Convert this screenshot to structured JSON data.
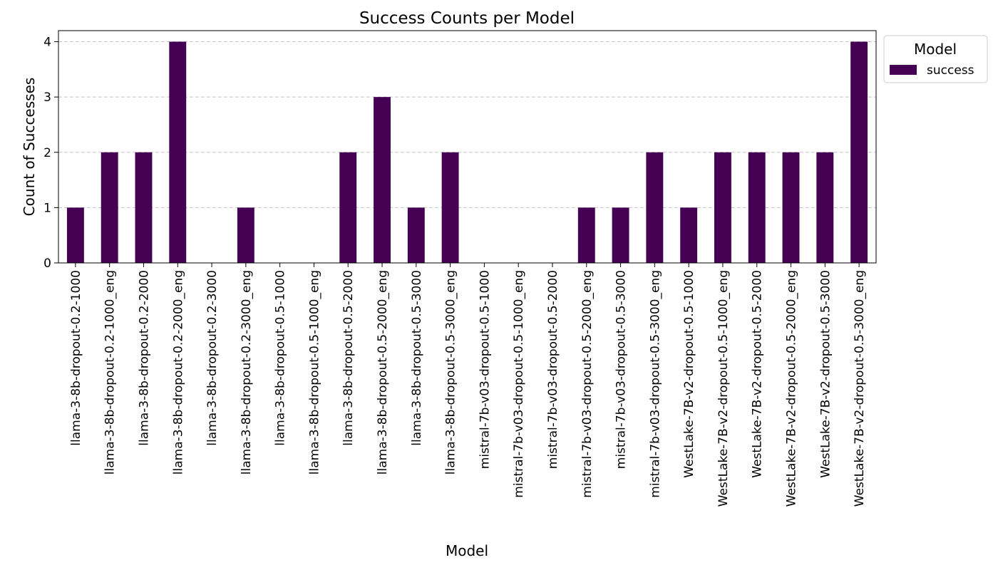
{
  "chart_data": {
    "type": "bar",
    "title": "Success Counts per Model",
    "xlabel": "Model",
    "ylabel": "Count of Successes",
    "ylim": [
      0,
      4.2
    ],
    "yticks": [
      0,
      1,
      2,
      3,
      4
    ],
    "grid": "y",
    "legend": {
      "title": "Model",
      "placement": "outside-top-right"
    },
    "categories": [
      "llama-3-8b-dropout-0.2-1000",
      "llama-3-8b-dropout-0.2-1000_eng",
      "llama-3-8b-dropout-0.2-2000",
      "llama-3-8b-dropout-0.2-2000_eng",
      "llama-3-8b-dropout-0.2-3000",
      "llama-3-8b-dropout-0.2-3000_eng",
      "llama-3-8b-dropout-0.5-1000",
      "llama-3-8b-dropout-0.5-1000_eng",
      "llama-3-8b-dropout-0.5-2000",
      "llama-3-8b-dropout-0.5-2000_eng",
      "llama-3-8b-dropout-0.5-3000",
      "llama-3-8b-dropout-0.5-3000_eng",
      "mistral-7b-v03-dropout-0.5-1000",
      "mistral-7b-v03-dropout-0.5-1000_eng",
      "mistral-7b-v03-dropout-0.5-2000",
      "mistral-7b-v03-dropout-0.5-2000_eng",
      "mistral-7b-v03-dropout-0.5-3000",
      "mistral-7b-v03-dropout-0.5-3000_eng",
      "WestLake-7B-v2-dropout-0.5-1000",
      "WestLake-7B-v2-dropout-0.5-1000_eng",
      "WestLake-7B-v2-dropout-0.5-2000",
      "WestLake-7B-v2-dropout-0.5-2000_eng",
      "WestLake-7B-v2-dropout-0.5-3000",
      "WestLake-7B-v2-dropout-0.5-3000_eng"
    ],
    "series": [
      {
        "name": "success",
        "color": "#440154",
        "values": [
          1,
          2,
          2,
          4,
          0,
          1,
          0,
          0,
          2,
          3,
          1,
          2,
          0,
          0,
          0,
          1,
          1,
          2,
          1,
          2,
          2,
          2,
          2,
          4
        ]
      }
    ]
  }
}
